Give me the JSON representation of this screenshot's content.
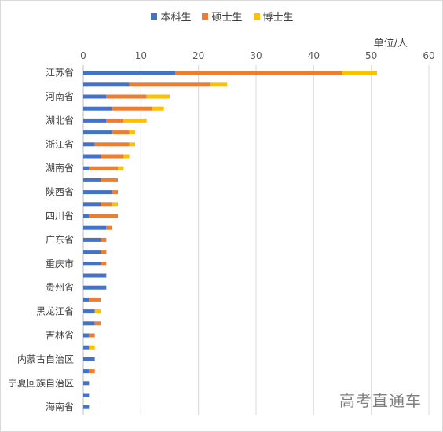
{
  "chart_data": {
    "type": "bar",
    "orientation": "horizontal",
    "stacked": true,
    "unit_label": "单位/人",
    "xlim": [
      0,
      60
    ],
    "x_ticks": [
      0,
      10,
      20,
      30,
      40,
      50,
      60
    ],
    "grid": true,
    "legend_position": "top",
    "categories": [
      "江苏省",
      "",
      "河南省",
      "",
      "湖北省",
      "",
      "浙江省",
      "",
      "湖南省",
      "",
      "陕西省",
      "",
      "四川省",
      "",
      "广东省",
      "",
      "重庆市",
      "",
      "贵州省",
      "",
      "黑龙江省",
      "",
      "吉林省",
      "",
      "内蒙古自治区",
      "",
      "宁夏回族自治区",
      "",
      "海南省"
    ],
    "series": [
      {
        "name": "本科生",
        "color": "#4472c4",
        "values": [
          16,
          8,
          4,
          5,
          4,
          5,
          2,
          3,
          1,
          3,
          5,
          3,
          1,
          4,
          3,
          3,
          3,
          4,
          4,
          1,
          2,
          2,
          1,
          1,
          2,
          1,
          1,
          1,
          1
        ]
      },
      {
        "name": "硕士生",
        "color": "#ed7d31",
        "values": [
          29,
          14,
          7,
          7,
          3,
          3,
          6,
          4,
          5,
          3,
          1,
          2,
          5,
          1,
          1,
          1,
          1,
          0,
          0,
          2,
          0,
          1,
          1,
          0,
          0,
          1,
          0,
          0,
          0
        ]
      },
      {
        "name": "博士生",
        "color": "#ffc000",
        "values": [
          6,
          3,
          4,
          2,
          4,
          1,
          1,
          1,
          1,
          0,
          0,
          1,
          0,
          0,
          0,
          0,
          0,
          0,
          0,
          0,
          1,
          0,
          0,
          1,
          0,
          0,
          0,
          0,
          0
        ]
      }
    ]
  },
  "watermark": "高考直通车"
}
